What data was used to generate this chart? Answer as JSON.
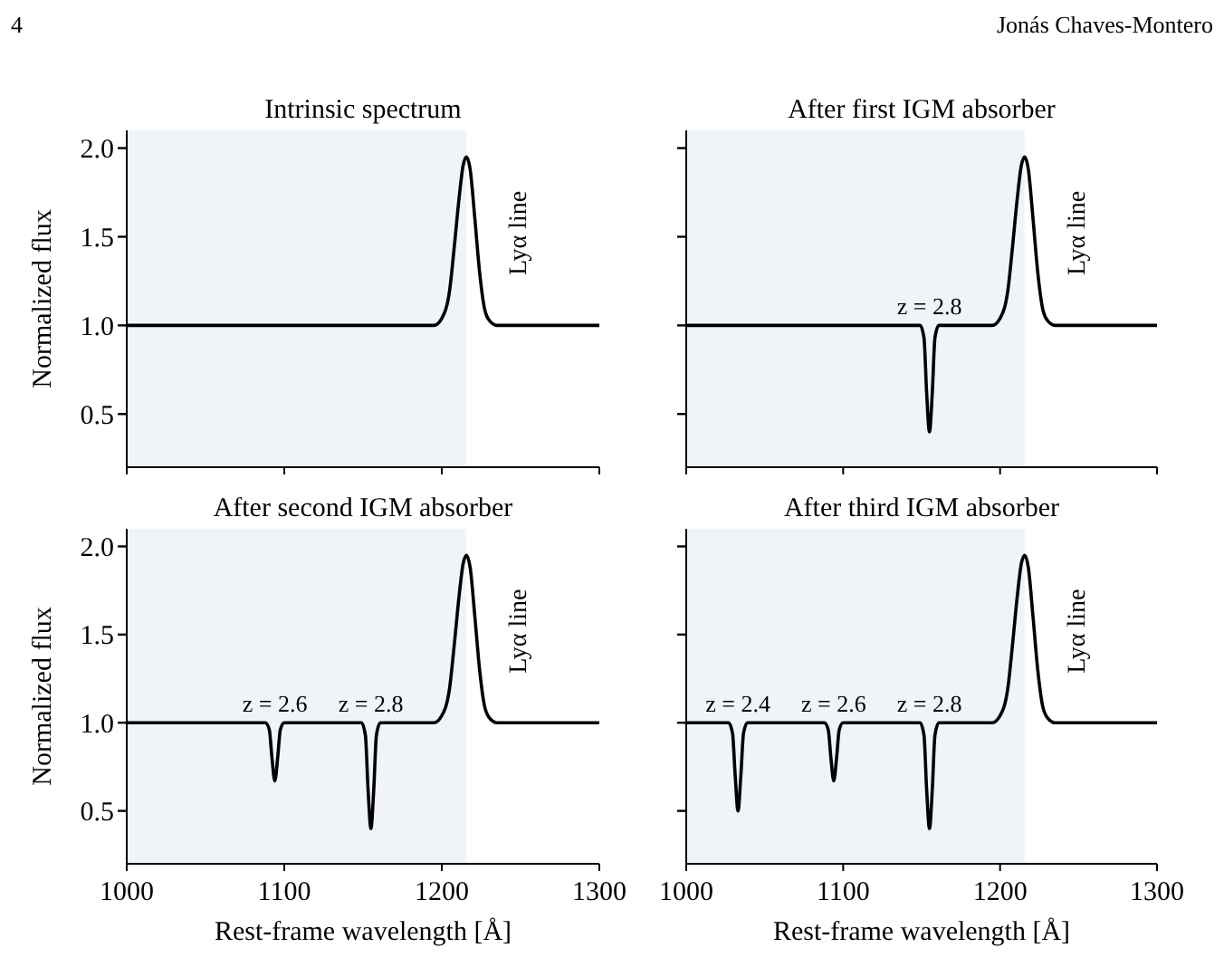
{
  "chart_data": [
    {
      "type": "line",
      "title": "Intrinsic spectrum",
      "ylabel": "Normalized flux",
      "annotations": [
        "4",
        "Jonás Chaves-Montero",
        {
          "text": "Lyα line",
          "x": 1215.6,
          "y": 1.95
        }
      ],
      "xlim": [
        1000,
        1300
      ],
      "xticks": [
        1000,
        1100,
        1200,
        1300
      ],
      "ylim": [
        0.2,
        2.1
      ],
      "yticks": [
        {
          "value": 0.5,
          "label": "0.5"
        },
        {
          "value": 1.0,
          "label": "1.0"
        },
        {
          "value": 1.5,
          "label": "1.5"
        },
        {
          "value": 2.0,
          "label": "2.0"
        }
      ],
      "tick_labels": "y",
      "bands": [
        {
          "axis": "x",
          "from": 1000,
          "to": 1215.6,
          "color": "#f0f4f8"
        }
      ],
      "series": [
        {
          "color": "#000000",
          "x": [
            1000,
            1195,
            1200,
            1205,
            1208,
            1211,
            1213.5,
            1215.6,
            1218,
            1221,
            1224,
            1227,
            1230,
            1235,
            1300
          ],
          "values": [
            1.0,
            1.0,
            1.04,
            1.2,
            1.45,
            1.72,
            1.9,
            1.95,
            1.88,
            1.6,
            1.3,
            1.1,
            1.03,
            1.0,
            1.0
          ]
        }
      ]
    },
    {
      "type": "line",
      "title": "After first IGM absorber",
      "annotations": [
        {
          "text": "Lyα line",
          "x": 1215.6,
          "y": 1.95
        },
        {
          "text": "z = 2.8",
          "x": 1155,
          "y": 1.0
        }
      ],
      "xlim": [
        1000,
        1300
      ],
      "xticks": [
        1000,
        1100,
        1200,
        1300
      ],
      "ylim": [
        0.2,
        2.1
      ],
      "yticks": [
        0.5,
        1,
        1.5,
        2
      ],
      "tick_labels": false,
      "bands": [
        {
          "axis": "x",
          "from": 1000,
          "to": 1215.6,
          "color": "#f0f4f8"
        }
      ],
      "series": [
        {
          "color": "#000000",
          "x": [
            1000,
            1149,
            1151.5,
            1153.2,
            1155,
            1156.8,
            1158.5,
            1161,
            1195,
            1200,
            1205,
            1208,
            1211,
            1213.5,
            1215.6,
            1218,
            1221,
            1224,
            1227,
            1230,
            1235,
            1300
          ],
          "values": [
            1.0,
            1.0,
            0.93,
            0.62,
            0.4,
            0.62,
            0.93,
            1.0,
            1.0,
            1.04,
            1.2,
            1.45,
            1.72,
            1.9,
            1.95,
            1.88,
            1.6,
            1.3,
            1.1,
            1.03,
            1.0,
            1.0
          ]
        }
      ]
    },
    {
      "type": "line",
      "title": "After second IGM absorber",
      "xlabel": "Rest-frame wavelength [Å]",
      "ylabel": "Normalized flux",
      "annotations": [
        {
          "text": "Lyα line",
          "x": 1215.6,
          "y": 1.95
        },
        {
          "text": "z = 2.6",
          "x": 1094,
          "y": 1.0
        },
        {
          "text": "z = 2.8",
          "x": 1155,
          "y": 1.0
        }
      ],
      "xlim": [
        1000,
        1300
      ],
      "xticks": [
        1000,
        1100,
        1200,
        1300
      ],
      "ylim": [
        0.2,
        2.1
      ],
      "yticks": [
        {
          "value": 0.5,
          "label": "0.5"
        },
        {
          "value": 1.0,
          "label": "1.0"
        },
        {
          "value": 1.5,
          "label": "1.5"
        },
        {
          "value": 2.0,
          "label": "2.0"
        }
      ],
      "bands": [
        {
          "axis": "x",
          "from": 1000,
          "to": 1215.6,
          "color": "#f0f4f8"
        }
      ],
      "series": [
        {
          "color": "#000000",
          "x": [
            1000,
            1088,
            1090.5,
            1092.2,
            1094,
            1095.8,
            1097.5,
            1100,
            1149,
            1151.5,
            1153.2,
            1155,
            1156.8,
            1158.5,
            1161,
            1195,
            1200,
            1205,
            1208,
            1211,
            1213.5,
            1215.6,
            1218,
            1221,
            1224,
            1227,
            1230,
            1235,
            1300
          ],
          "values": [
            1.0,
            1.0,
            0.96,
            0.8,
            0.67,
            0.8,
            0.96,
            1.0,
            1.0,
            0.93,
            0.62,
            0.4,
            0.62,
            0.93,
            1.0,
            1.0,
            1.04,
            1.2,
            1.45,
            1.72,
            1.9,
            1.95,
            1.88,
            1.6,
            1.3,
            1.1,
            1.03,
            1.0,
            1.0
          ]
        }
      ]
    },
    {
      "type": "line",
      "title": "After third IGM absorber",
      "xlabel": "Rest-frame wavelength [Å]",
      "annotations": [
        {
          "text": "Lyα line",
          "x": 1215.6,
          "y": 1.95
        },
        {
          "text": "z = 2.4",
          "x": 1033,
          "y": 1.0
        },
        {
          "text": "z = 2.6",
          "x": 1094,
          "y": 1.0
        },
        {
          "text": "z = 2.8",
          "x": 1155,
          "y": 1.0
        }
      ],
      "xlim": [
        1000,
        1300
      ],
      "xticks": [
        1000,
        1100,
        1200,
        1300
      ],
      "ylim": [
        0.2,
        2.1
      ],
      "yticks": [
        0.5,
        1,
        1.5,
        2
      ],
      "tick_labels": "x",
      "bands": [
        {
          "axis": "x",
          "from": 1000,
          "to": 1215.6,
          "color": "#f0f4f8"
        }
      ],
      "series": [
        {
          "color": "#000000",
          "x": [
            1000,
            1027,
            1029.5,
            1031.2,
            1033,
            1034.8,
            1036.5,
            1039,
            1088,
            1090.5,
            1092.2,
            1094,
            1095.8,
            1097.5,
            1100,
            1149,
            1151.5,
            1153.2,
            1155,
            1156.8,
            1158.5,
            1161,
            1195,
            1200,
            1205,
            1208,
            1211,
            1213.5,
            1215.6,
            1218,
            1221,
            1224,
            1227,
            1230,
            1235,
            1300
          ],
          "values": [
            1.0,
            1.0,
            0.94,
            0.7,
            0.5,
            0.7,
            0.94,
            1.0,
            1.0,
            0.96,
            0.8,
            0.67,
            0.8,
            0.96,
            1.0,
            1.0,
            0.93,
            0.62,
            0.4,
            0.62,
            0.93,
            1.0,
            1.0,
            1.04,
            1.2,
            1.45,
            1.72,
            1.9,
            1.95,
            1.88,
            1.6,
            1.3,
            1.1,
            1.03,
            1.0,
            1.0
          ]
        }
      ]
    }
  ]
}
